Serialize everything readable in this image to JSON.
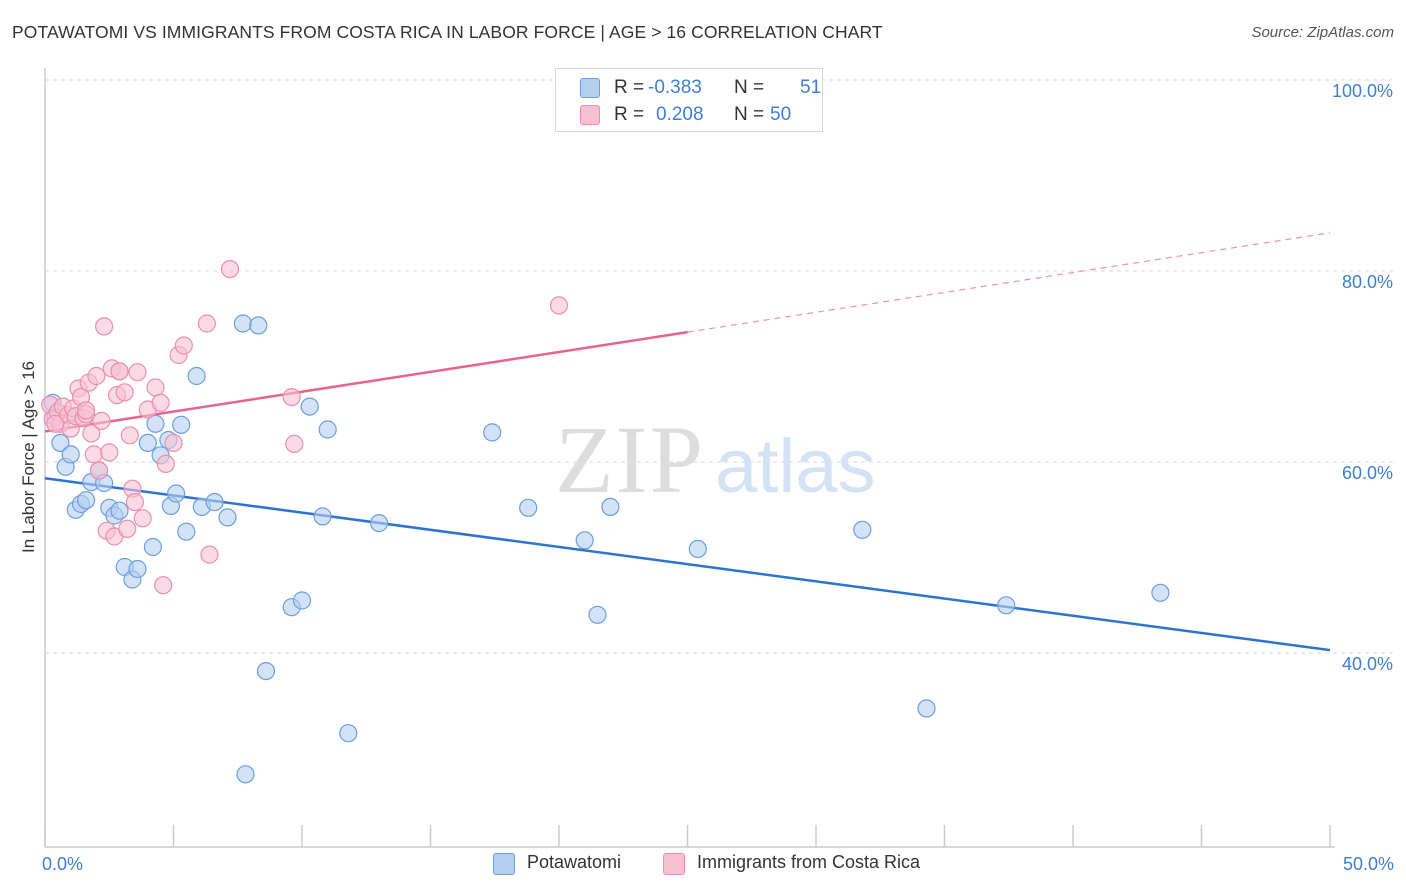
{
  "title": "POTAWATOMI VS IMMIGRANTS FROM COSTA RICA IN LABOR FORCE | AGE > 16 CORRELATION CHART",
  "source": "Source: ZipAtlas.com",
  "watermark": {
    "zip": "ZIP",
    "atlas": "atlas"
  },
  "colors": {
    "blue": "#3f7fd0",
    "blue_fill": "#b5cff0",
    "blue_line": "#2d73d2",
    "pink": "#e8628f",
    "pink_fill": "#f7c1d2",
    "grid": "#d9d9d9",
    "axis_text": "#3f7fd0"
  },
  "stats_legend": [
    {
      "r_label": "R =",
      "r_value": "-0.383",
      "n_label": "N =",
      "n_value": "51",
      "color": "blue"
    },
    {
      "r_label": "R =",
      "r_value": "0.208",
      "n_label": "N =",
      "n_value": "50",
      "color": "pink"
    }
  ],
  "series_legend": [
    {
      "name": "Potawatomi",
      "color": "blue"
    },
    {
      "name": "Immigrants from Costa Rica",
      "color": "pink"
    }
  ],
  "chart_data": {
    "type": "scatter",
    "title": "POTAWATOMI VS IMMIGRANTS FROM COSTA RICA IN LABOR FORCE | AGE > 16 CORRELATION CHART",
    "xlabel": "",
    "ylabel": "In Labor Force | Age > 16",
    "xlim": [
      0,
      50
    ],
    "ylim": [
      20,
      103
    ],
    "x_tick_labels": [
      {
        "value": 0,
        "label": "0.0%"
      },
      {
        "value": 50,
        "label": "50.0%"
      }
    ],
    "y_tick_labels": [
      {
        "value": 40,
        "label": "40.0%"
      },
      {
        "value": 60,
        "label": "60.0%"
      },
      {
        "value": 80,
        "label": "80.0%"
      },
      {
        "value": 100,
        "label": "100.0%"
      }
    ],
    "x_minor_ticks": [
      0,
      5,
      10,
      15,
      20,
      25,
      30,
      35,
      40,
      45,
      50
    ],
    "y_gridlines": [
      40,
      60,
      80,
      100
    ],
    "grid": true,
    "legend_position": "top-center",
    "series": [
      {
        "name": "Potawatomi",
        "color": "blue",
        "trend": {
          "x": [
            0,
            50
          ],
          "y": [
            58.3,
            40.3
          ],
          "dashed_from": null
        },
        "points": [
          [
            0.3,
            66.2
          ],
          [
            0.4,
            64.7
          ],
          [
            0.6,
            62.0
          ],
          [
            0.8,
            59.5
          ],
          [
            1.0,
            60.8
          ],
          [
            1.2,
            55.0
          ],
          [
            1.4,
            55.6
          ],
          [
            1.6,
            56.0
          ],
          [
            1.8,
            57.9
          ],
          [
            2.1,
            59.1
          ],
          [
            2.3,
            57.8
          ],
          [
            2.5,
            55.2
          ],
          [
            2.7,
            54.4
          ],
          [
            2.9,
            54.9
          ],
          [
            3.1,
            49.0
          ],
          [
            3.4,
            47.7
          ],
          [
            3.6,
            48.8
          ],
          [
            4.0,
            62.0
          ],
          [
            4.2,
            51.1
          ],
          [
            4.3,
            64.0
          ],
          [
            4.5,
            60.7
          ],
          [
            4.8,
            62.3
          ],
          [
            4.9,
            55.4
          ],
          [
            5.1,
            56.7
          ],
          [
            5.3,
            63.9
          ],
          [
            5.5,
            52.7
          ],
          [
            5.9,
            69.0
          ],
          [
            6.1,
            55.3
          ],
          [
            6.6,
            55.8
          ],
          [
            7.1,
            54.2
          ],
          [
            7.7,
            74.5
          ],
          [
            8.3,
            74.3
          ],
          [
            7.8,
            27.3
          ],
          [
            8.6,
            38.1
          ],
          [
            9.6,
            44.8
          ],
          [
            10.0,
            45.5
          ],
          [
            10.3,
            65.8
          ],
          [
            10.8,
            54.3
          ],
          [
            11.0,
            63.4
          ],
          [
            11.8,
            31.6
          ],
          [
            13.0,
            53.6
          ],
          [
            17.4,
            63.1
          ],
          [
            18.8,
            55.2
          ],
          [
            21.0,
            51.8
          ],
          [
            21.5,
            44.0
          ],
          [
            22.0,
            55.3
          ],
          [
            25.4,
            50.9
          ],
          [
            31.8,
            52.9
          ],
          [
            34.3,
            34.2
          ],
          [
            37.4,
            45.0
          ],
          [
            43.4,
            46.3
          ]
        ]
      },
      {
        "name": "Immigrants from Costa Rica",
        "color": "pink",
        "trend": {
          "x": [
            0,
            50
          ],
          "y": [
            63.2,
            84.0
          ],
          "dashed_from": 25.0
        },
        "points": [
          [
            0.2,
            66.0
          ],
          [
            0.3,
            64.5
          ],
          [
            0.5,
            65.2
          ],
          [
            0.6,
            64.0
          ],
          [
            0.7,
            65.8
          ],
          [
            0.9,
            64.9
          ],
          [
            1.0,
            63.5
          ],
          [
            1.1,
            65.6
          ],
          [
            1.2,
            64.8
          ],
          [
            1.3,
            67.7
          ],
          [
            1.4,
            66.8
          ],
          [
            1.5,
            64.6
          ],
          [
            1.6,
            65.0
          ],
          [
            1.7,
            68.3
          ],
          [
            1.8,
            63.0
          ],
          [
            1.9,
            60.8
          ],
          [
            2.0,
            69.0
          ],
          [
            2.1,
            59.1
          ],
          [
            2.2,
            64.3
          ],
          [
            2.3,
            74.2
          ],
          [
            2.4,
            52.8
          ],
          [
            2.5,
            61.0
          ],
          [
            2.6,
            69.8
          ],
          [
            2.7,
            52.2
          ],
          [
            2.8,
            67.0
          ],
          [
            2.9,
            69.5
          ],
          [
            3.1,
            67.3
          ],
          [
            3.2,
            53.0
          ],
          [
            3.3,
            62.8
          ],
          [
            3.4,
            57.2
          ],
          [
            3.5,
            55.8
          ],
          [
            3.6,
            69.4
          ],
          [
            3.8,
            54.1
          ],
          [
            4.0,
            65.5
          ],
          [
            4.3,
            67.8
          ],
          [
            4.5,
            66.2
          ],
          [
            4.6,
            47.1
          ],
          [
            4.7,
            59.8
          ],
          [
            5.0,
            62.0
          ],
          [
            5.2,
            71.2
          ],
          [
            5.4,
            72.2
          ],
          [
            6.3,
            74.5
          ],
          [
            6.4,
            50.3
          ],
          [
            7.2,
            80.2
          ],
          [
            9.6,
            66.8
          ],
          [
            9.7,
            61.9
          ],
          [
            20.0,
            76.4
          ],
          [
            0.4,
            64.0
          ],
          [
            1.6,
            65.4
          ],
          [
            2.9,
            69.5
          ]
        ]
      }
    ]
  }
}
